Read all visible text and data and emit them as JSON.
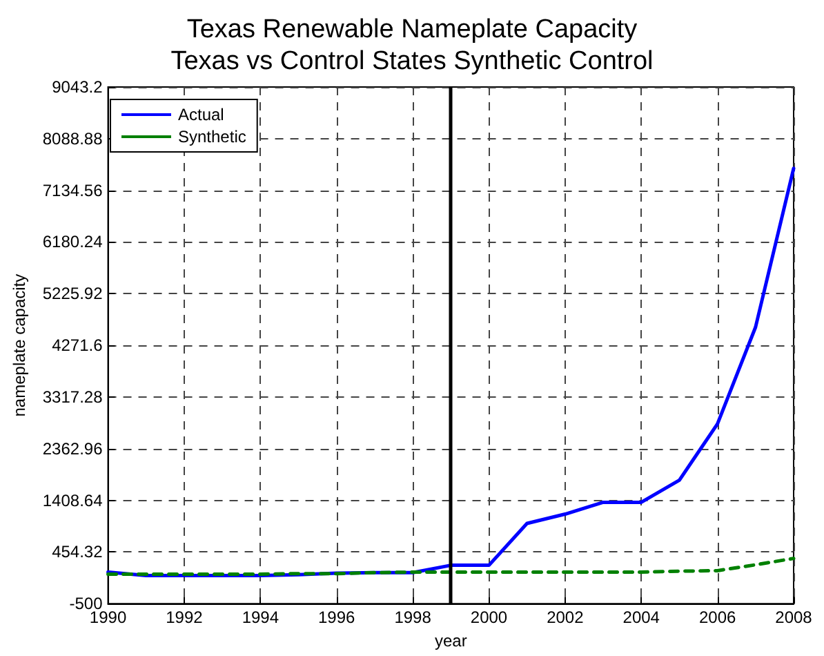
{
  "chart_data": {
    "type": "line",
    "title": "Texas Renewable Nameplate Capacity\nTexas vs Control States Synthetic Control",
    "xlabel": "year",
    "ylabel": "nameplate capacity",
    "x": [
      1990,
      1991,
      1992,
      1993,
      1994,
      1995,
      1996,
      1997,
      1998,
      1999,
      2000,
      2001,
      2002,
      2003,
      2004,
      2005,
      2006,
      2007,
      2008
    ],
    "series": [
      {
        "name": "Actual",
        "color": "#0000ff",
        "line_style": "solid",
        "values": [
          82,
          18,
          18,
          18,
          18,
          36,
          64,
          73,
          73,
          209,
          209,
          982,
          1154,
          1372,
          1372,
          1780,
          2821,
          4608,
          7540
        ]
      },
      {
        "name": "Synthetic",
        "color": "#008000",
        "line_style": "dashed",
        "values": [
          45,
          45,
          45,
          45,
          45,
          55,
          55,
          73,
          82,
          82,
          82,
          82,
          82,
          82,
          82,
          100,
          109,
          218,
          336
        ]
      }
    ],
    "xlim": [
      1990,
      2008
    ],
    "xticks": [
      1990,
      1992,
      1994,
      1996,
      1998,
      2000,
      2002,
      2004,
      2006,
      2008
    ],
    "ylim": [
      -500,
      9043.2
    ],
    "yticks": [
      -500,
      454.32,
      1408.64,
      2362.96,
      3317.28,
      4271.6,
      5225.92,
      6180.24,
      7134.56,
      8088.88,
      9043.2
    ],
    "ref_lines": [
      {
        "axis": "x",
        "value": 1999,
        "color": "#000000",
        "line_style": "solid"
      }
    ],
    "grid": true,
    "legend": "top left",
    "marker": "none"
  }
}
